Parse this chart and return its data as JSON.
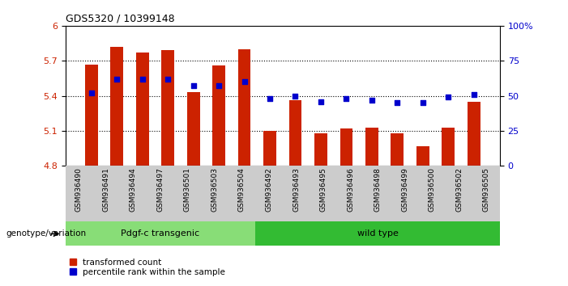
{
  "title": "GDS5320 / 10399148",
  "categories": [
    "GSM936490",
    "GSM936491",
    "GSM936494",
    "GSM936497",
    "GSM936501",
    "GSM936503",
    "GSM936504",
    "GSM936492",
    "GSM936493",
    "GSM936495",
    "GSM936496",
    "GSM936498",
    "GSM936499",
    "GSM936500",
    "GSM936502",
    "GSM936505"
  ],
  "bar_values": [
    5.67,
    5.82,
    5.77,
    5.79,
    5.43,
    5.66,
    5.8,
    5.1,
    5.36,
    5.08,
    5.12,
    5.13,
    5.08,
    4.97,
    5.13,
    5.35
  ],
  "bar_base": 4.8,
  "percentile_values": [
    52,
    62,
    62,
    62,
    57,
    57,
    60,
    48,
    50,
    46,
    48,
    47,
    45,
    45,
    49,
    51
  ],
  "ylim_left": [
    4.8,
    6.0
  ],
  "ylim_right": [
    0,
    100
  ],
  "yticks_left": [
    4.8,
    5.1,
    5.4,
    5.7,
    6.0
  ],
  "ytick_labels_left": [
    "4.8",
    "5.1",
    "5.4",
    "5.7",
    "6"
  ],
  "yticks_right": [
    0,
    25,
    50,
    75,
    100
  ],
  "ytick_labels_right": [
    "0",
    "25",
    "50",
    "75",
    "100%"
  ],
  "hlines": [
    5.1,
    5.4,
    5.7
  ],
  "bar_color": "#cc2200",
  "dot_color": "#0000cc",
  "group1_label": "Pdgf-c transgenic",
  "group2_label": "wild type",
  "group1_color": "#88dd77",
  "group2_color": "#33bb33",
  "group1_count": 7,
  "group2_count": 9,
  "legend_bar_label": "transformed count",
  "legend_dot_label": "percentile rank within the sample",
  "genotype_label": "genotype/variation",
  "tick_label_color_left": "#cc2200",
  "tick_label_color_right": "#0000cc",
  "bg_color": "#ffffff",
  "plot_bg": "#ffffff"
}
